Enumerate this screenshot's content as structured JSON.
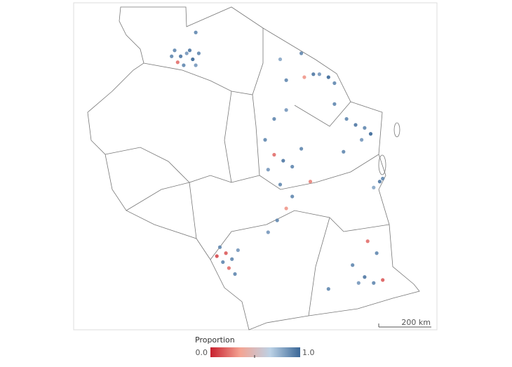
{
  "map": {
    "lon": [
      32.3,
      32.5,
      32.7,
      32.9,
      33.1,
      32.4,
      32.6,
      32.8,
      33.0,
      32.2,
      33.0,
      36.5,
      36.9,
      37.1,
      37.4,
      36.6,
      37.6,
      36.0,
      35.8,
      38.0,
      38.3,
      38.6,
      38.5,
      38.8,
      37.6,
      37.9,
      35.3,
      35.6,
      35.9,
      36.2,
      35.4,
      36.5,
      36.8,
      35.8,
      35.6,
      36.0,
      39.1,
      39.2,
      38.9,
      36.2,
      36.0,
      35.7,
      35.4,
      33.8,
      34.0,
      34.2,
      34.4,
      34.1,
      33.9,
      34.3,
      33.7,
      38.2,
      38.6,
      38.9,
      39.2,
      38.4,
      39.0,
      38.7,
      37.4
    ],
    "lat": [
      -2.5,
      -2.7,
      -2.6,
      -2.8,
      -2.6,
      -2.9,
      -3.0,
      -2.5,
      -3.0,
      -2.7,
      -1.9,
      -2.6,
      -3.3,
      -3.3,
      -3.4,
      -3.4,
      -3.6,
      -3.5,
      -2.8,
      -4.8,
      -5.0,
      -5.1,
      -5.5,
      -5.3,
      -4.3,
      -5.9,
      -5.5,
      -6.0,
      -6.2,
      -6.4,
      -6.5,
      -5.8,
      -6.9,
      -7.0,
      -4.8,
      -4.5,
      -6.9,
      -6.8,
      -7.1,
      -7.4,
      -7.8,
      -8.2,
      -8.6,
      -9.1,
      -9.3,
      -9.5,
      -9.2,
      -9.8,
      -9.6,
      -10.0,
      -9.4,
      -9.7,
      -10.1,
      -10.3,
      -10.2,
      -10.3,
      -9.3,
      -8.9,
      -10.5
    ],
    "proportion": [
      0.9,
      0.95,
      0.85,
      1,
      0.9,
      0.2,
      0.9,
      0.95,
      0.85,
      0.9,
      0.9,
      0.9,
      0.95,
      0.85,
      1,
      0.3,
      0.9,
      0.9,
      0.8,
      0.9,
      0.95,
      0.9,
      0.85,
      1,
      0.9,
      0.9,
      0.9,
      0.2,
      0.95,
      0.9,
      0.85,
      0.9,
      0.25,
      0.9,
      0.9,
      0.85,
      0.95,
      0.9,
      0.8,
      0.9,
      0.3,
      0.9,
      0.85,
      0.9,
      0.15,
      0.9,
      0.85,
      0.2,
      0.9,
      0.9,
      0.1,
      0.9,
      0.95,
      0.9,
      0.15,
      0.85,
      0.9,
      0.2,
      0.9
    ],
    "colorscale": [
      "#c8202e",
      "#f4a493",
      "#bcd2e6",
      "#3a6797"
    ],
    "scale_bar": "200 km"
  },
  "legend": {
    "title": "Proportion",
    "min": {
      "value": 0,
      "label": "0.0"
    },
    "max": {
      "value": 1,
      "label": "1.0"
    }
  }
}
